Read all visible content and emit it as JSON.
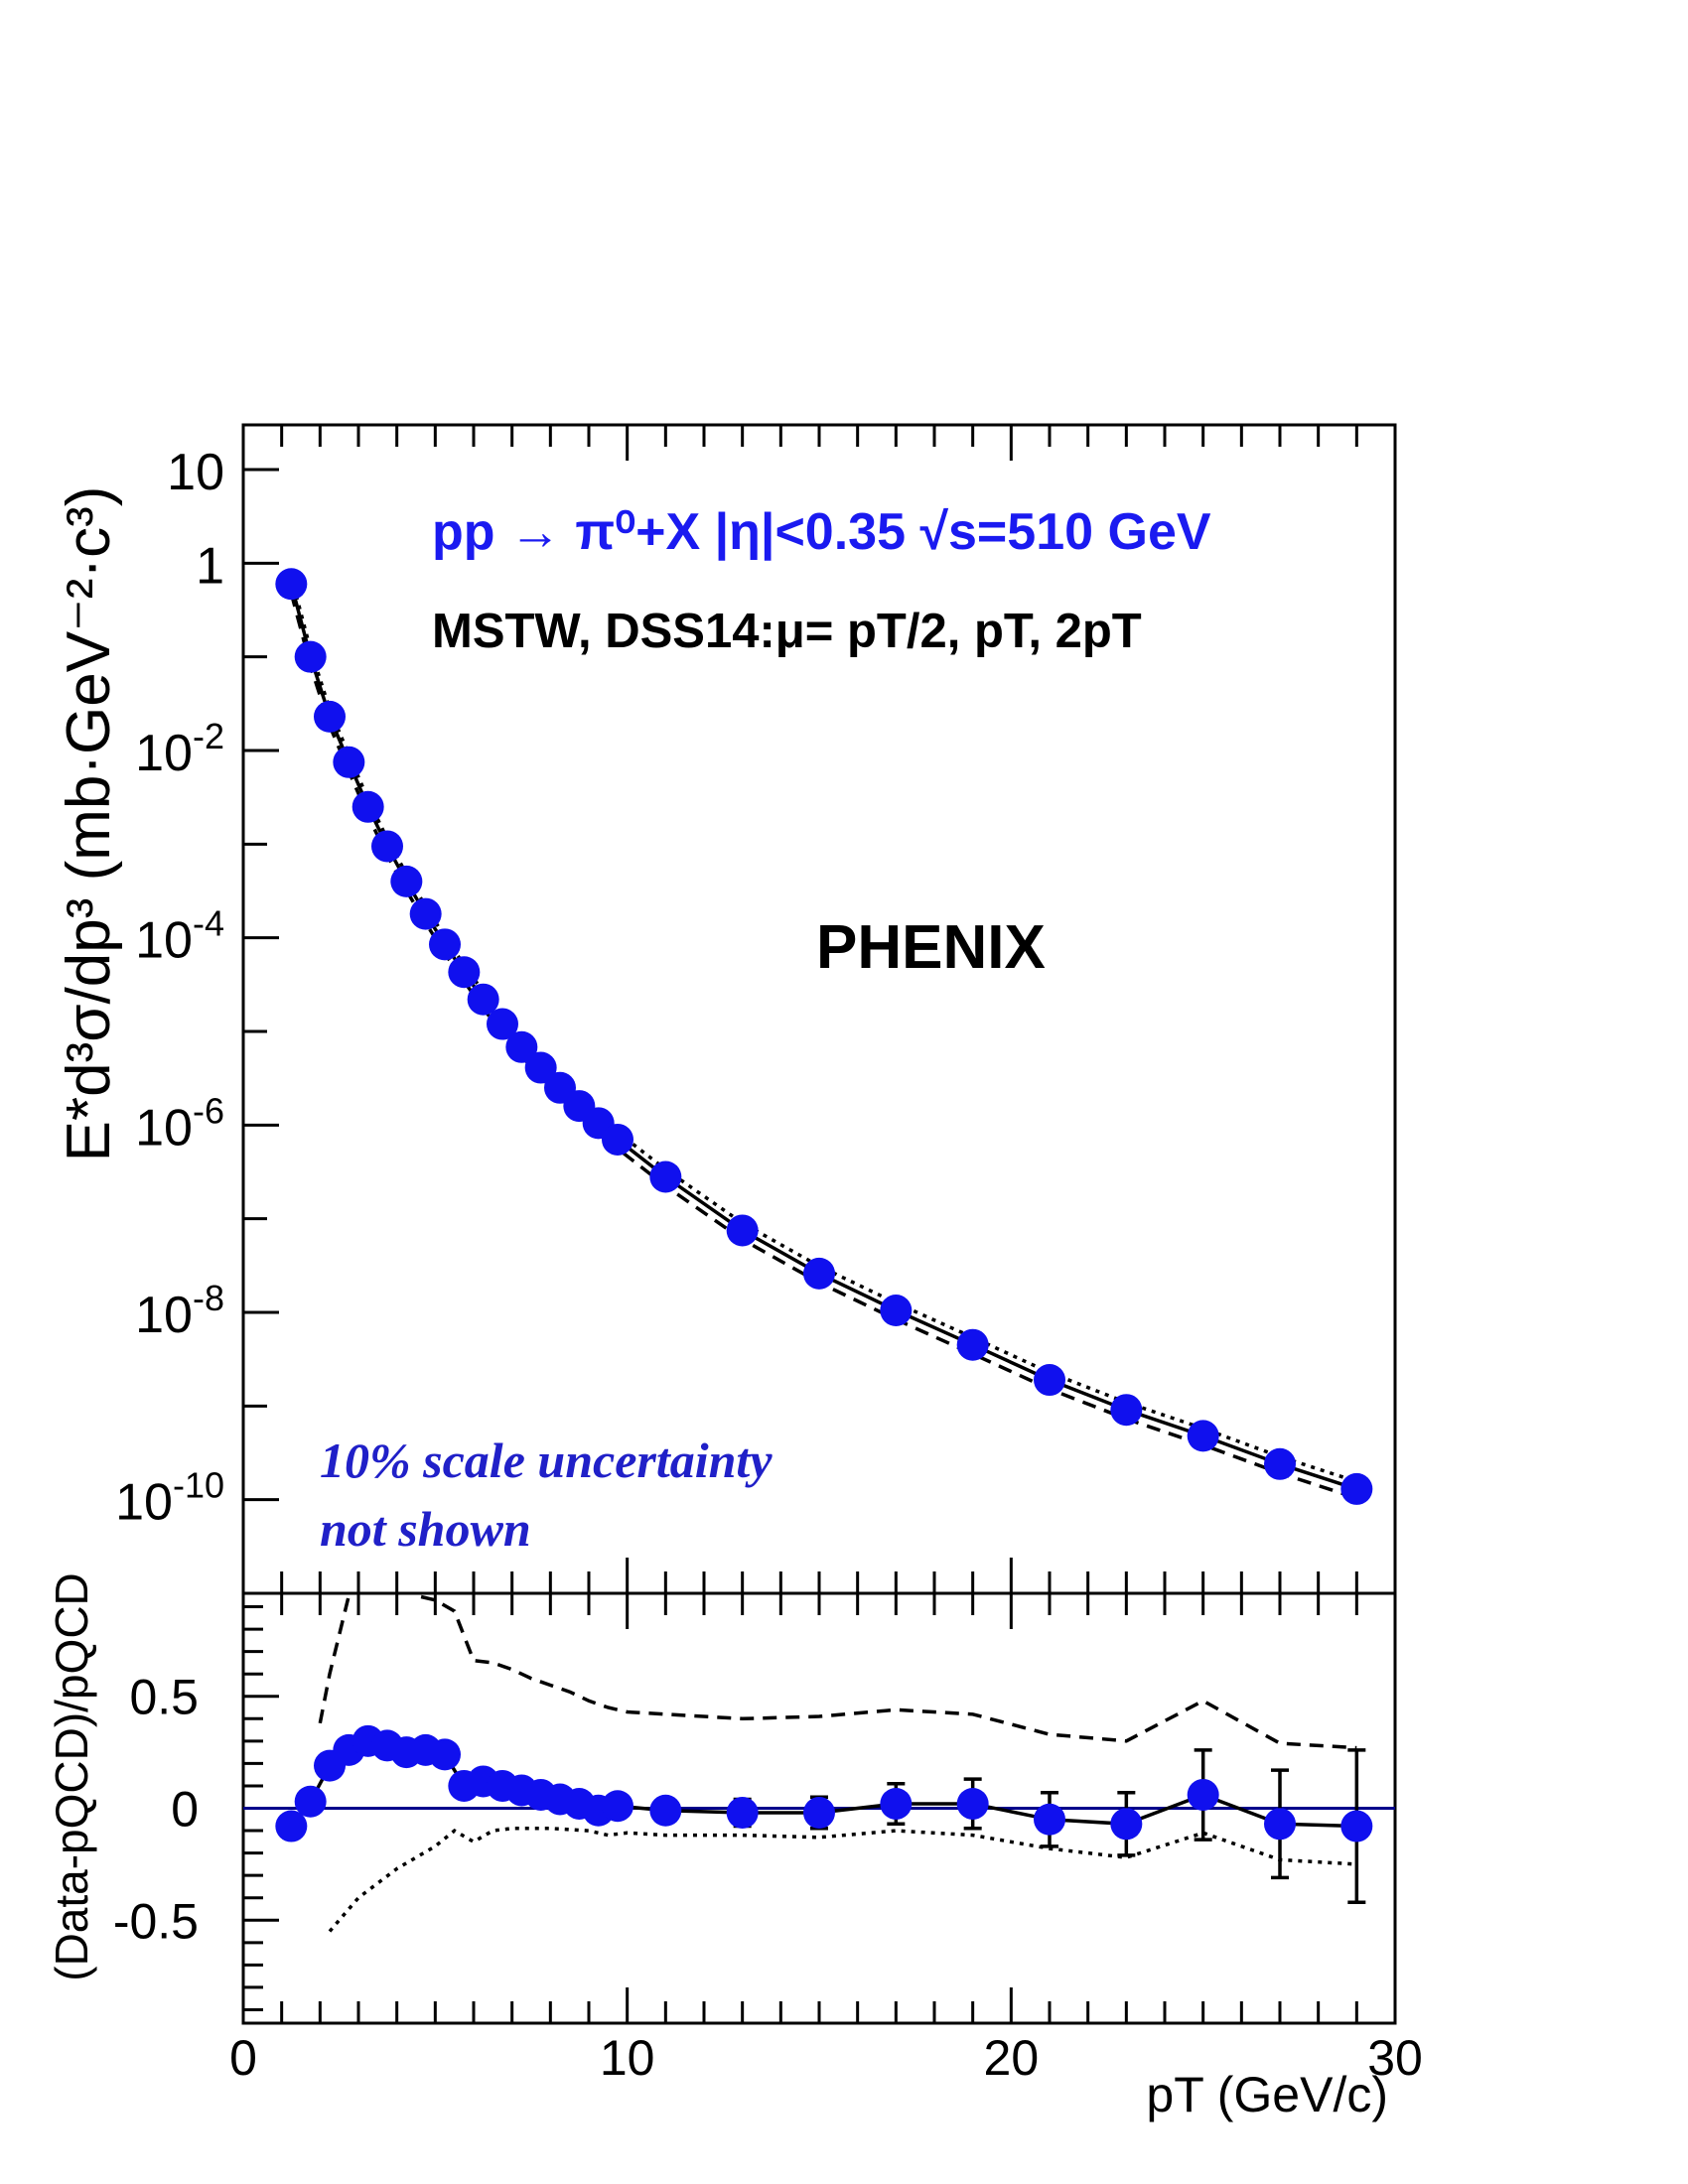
{
  "chart_data": [
    {
      "type": "scatter",
      "panel": "upper",
      "ylabel": "E*d³σ/dp³ (mb·GeV⁻²·c³)",
      "x_axis": {
        "range": [
          0,
          30
        ],
        "ticks": [
          0,
          10,
          20,
          30
        ]
      },
      "y_axis": {
        "scale": "log",
        "range": [
          1e-11,
          30
        ],
        "tick_labels": [
          {
            "base": "10",
            "exp": "",
            "v": 10
          },
          {
            "base": "1",
            "exp": "",
            "v": 1
          },
          {
            "base": "10",
            "exp": "-2",
            "v": 0.01
          },
          {
            "base": "10",
            "exp": "-4",
            "v": 0.0001
          },
          {
            "base": "10",
            "exp": "-6",
            "v": 1e-06
          },
          {
            "base": "10",
            "exp": "-8",
            "v": 1e-08
          },
          {
            "base": "10",
            "exp": "-10",
            "v": 1e-10
          }
        ]
      },
      "annotations": {
        "process": "pp → π⁰+X  |η|<0.35  √s=510 GeV",
        "theory": "MSTW, DSS14:μ= pT/2, pT, 2pT",
        "experiment": "PHENIX",
        "scale_note_line1": "10% scale uncertainty",
        "scale_note_line2": "not shown"
      },
      "colors": {
        "data": "#1010ee",
        "text_blue": "#1a1af0",
        "note_blue": "#2020c8",
        "theory": "#000000"
      },
      "series": [
        {
          "marker": "circle",
          "points": [
            [
              1.25,
              0.6
            ],
            [
              1.75,
              0.1
            ],
            [
              2.25,
              0.023
            ],
            [
              2.75,
              0.0075
            ],
            [
              3.25,
              0.0025
            ],
            [
              3.75,
              0.00095
            ],
            [
              4.25,
              0.0004
            ],
            [
              4.75,
              0.00018
            ],
            [
              5.25,
              8.5e-05
            ],
            [
              5.75,
              4.3e-05
            ],
            [
              6.25,
              2.2e-05
            ],
            [
              6.75,
              1.2e-05
            ],
            [
              7.25,
              6.8e-06
            ],
            [
              7.75,
              4.1e-06
            ],
            [
              8.25,
              2.5e-06
            ],
            [
              8.75,
              1.6e-06
            ],
            [
              9.25,
              1.05e-06
            ],
            [
              9.75,
              7e-07
            ],
            [
              11,
              2.8e-07
            ],
            [
              13,
              7.5e-08
            ],
            [
              15,
              2.6e-08
            ],
            [
              17,
              1.05e-08
            ],
            [
              19,
              4.5e-09
            ],
            [
              21,
              1.9e-09
            ],
            [
              23,
              9.1e-10
            ],
            [
              25,
              4.8e-10
            ],
            [
              27,
              2.4e-10
            ],
            [
              29,
              1.3e-10
            ]
          ]
        }
      ],
      "theory_curves": [
        {
          "style": "solid",
          "scale": 1.0
        },
        {
          "style": "dashed",
          "scale": 0.8
        },
        {
          "style": "dotted",
          "scale": 1.2
        }
      ]
    },
    {
      "type": "scatter",
      "panel": "lower",
      "ylabel": "(Data-pQCD)/pQCD",
      "xlabel": "pT (GeV/c)",
      "x_axis": {
        "range": [
          0,
          30
        ],
        "ticks": [
          0,
          10,
          20,
          30
        ]
      },
      "y_axis": {
        "range": [
          -0.96,
          0.96
        ],
        "ticks": [
          0.5,
          0,
          -0.5
        ],
        "tick_labels": [
          "0.5",
          "0",
          "-0.5"
        ]
      },
      "zero_line_color": "#00008b",
      "series": [
        {
          "marker": "circle",
          "points": [
            [
              1.25,
              -0.08,
              0.05
            ],
            [
              1.75,
              0.03,
              0.04
            ],
            [
              2.25,
              0.19,
              0.04
            ],
            [
              2.75,
              0.26,
              0.04
            ],
            [
              3.25,
              0.3,
              0.04
            ],
            [
              3.75,
              0.28,
              0.04
            ],
            [
              4.25,
              0.25,
              0.04
            ],
            [
              4.75,
              0.26,
              0.04
            ],
            [
              5.25,
              0.24,
              0.04
            ],
            [
              5.75,
              0.1,
              0.04
            ],
            [
              6.25,
              0.12,
              0.04
            ],
            [
              6.75,
              0.1,
              0.04
            ],
            [
              7.25,
              0.08,
              0.04
            ],
            [
              7.75,
              0.06,
              0.04
            ],
            [
              8.25,
              0.04,
              0.04
            ],
            [
              8.75,
              0.02,
              0.04
            ],
            [
              9.25,
              -0.01,
              0.05
            ],
            [
              9.75,
              0.01,
              0.05
            ],
            [
              11,
              -0.01,
              0.05
            ],
            [
              13,
              -0.02,
              0.06
            ],
            [
              15,
              -0.02,
              0.07
            ],
            [
              17,
              0.02,
              0.09
            ],
            [
              19,
              0.02,
              0.11
            ],
            [
              21,
              -0.05,
              0.12
            ],
            [
              23,
              -0.07,
              0.14
            ],
            [
              25,
              0.06,
              0.2
            ],
            [
              27,
              -0.07,
              0.24
            ],
            [
              29,
              -0.08,
              0.34
            ]
          ]
        },
        {
          "name": "μ = 2pT",
          "style": "dashed",
          "points": [
            [
              2,
              0.38
            ],
            [
              2.25,
              0.6
            ],
            [
              2.75,
              0.95
            ],
            [
              3,
              1.05
            ],
            [
              4,
              1.05
            ],
            [
              4.5,
              0.95
            ],
            [
              5,
              0.93
            ],
            [
              5.5,
              0.88
            ],
            [
              6,
              0.66
            ],
            [
              6.5,
              0.65
            ],
            [
              7,
              0.62
            ],
            [
              7.5,
              0.58
            ],
            [
              8,
              0.55
            ],
            [
              8.5,
              0.52
            ],
            [
              9,
              0.48
            ],
            [
              9.5,
              0.45
            ],
            [
              10,
              0.43
            ],
            [
              11,
              0.42
            ],
            [
              13,
              0.4
            ],
            [
              15,
              0.41
            ],
            [
              17,
              0.44
            ],
            [
              19,
              0.42
            ],
            [
              21,
              0.33
            ],
            [
              23,
              0.3
            ],
            [
              25,
              0.48
            ],
            [
              27,
              0.29
            ],
            [
              29,
              0.27
            ]
          ]
        },
        {
          "name": "μ = pT/2",
          "style": "dotted",
          "points": [
            [
              2.25,
              -0.55
            ],
            [
              3,
              -0.4
            ],
            [
              4,
              -0.27
            ],
            [
              5,
              -0.17
            ],
            [
              5.5,
              -0.1
            ],
            [
              6,
              -0.15
            ],
            [
              6.5,
              -0.1
            ],
            [
              7,
              -0.09
            ],
            [
              8,
              -0.09
            ],
            [
              9,
              -0.1
            ],
            [
              9.5,
              -0.12
            ],
            [
              10,
              -0.11
            ],
            [
              11,
              -0.12
            ],
            [
              13,
              -0.12
            ],
            [
              15,
              -0.13
            ],
            [
              17,
              -0.1
            ],
            [
              19,
              -0.12
            ],
            [
              21,
              -0.18
            ],
            [
              23,
              -0.22
            ],
            [
              25,
              -0.11
            ],
            [
              27,
              -0.23
            ],
            [
              29,
              -0.25
            ]
          ]
        }
      ]
    }
  ]
}
